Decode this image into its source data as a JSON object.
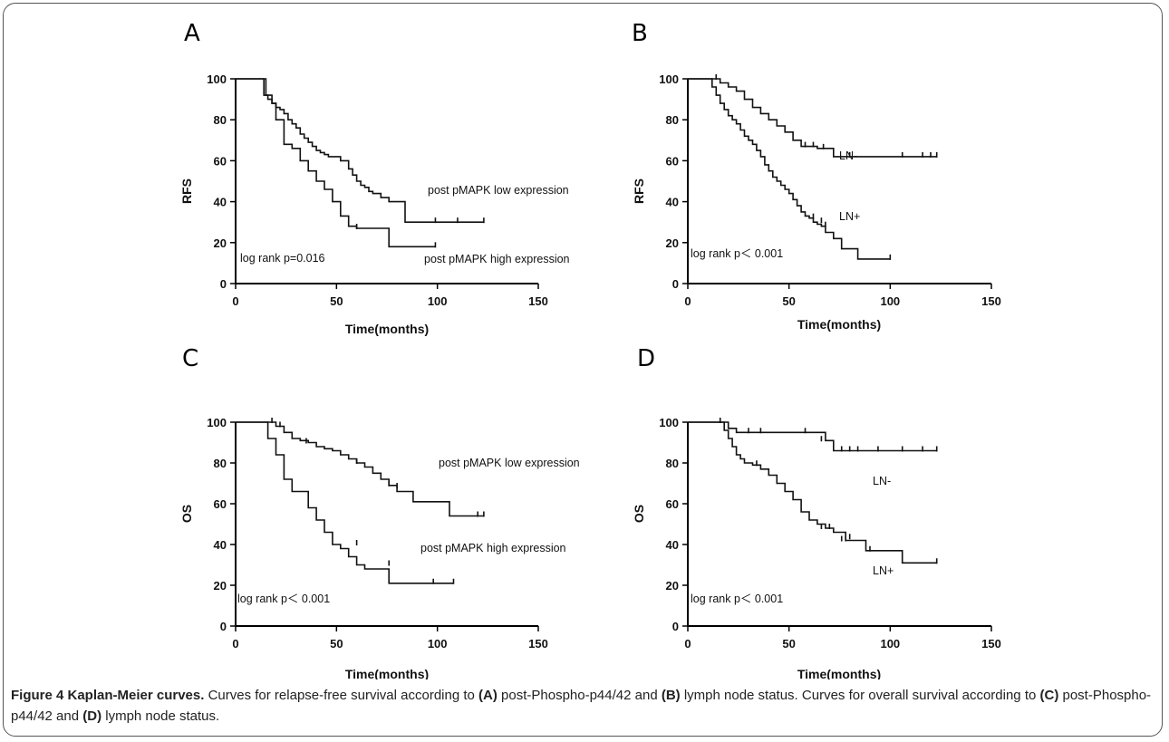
{
  "chart_data": [
    {
      "type": "line",
      "panel": "A",
      "xlabel": "Time(months)",
      "ylabel": "RFS",
      "xlim": [
        0,
        150
      ],
      "ylim": [
        0,
        100
      ],
      "xticks": [
        0,
        50,
        100,
        150
      ],
      "yticks": [
        0,
        20,
        40,
        60,
        80,
        100
      ],
      "annotations": [
        "post pMAPK low expression",
        "post pMAPK high expression",
        "log rank p=0.016"
      ],
      "series": [
        {
          "name": "post pMAPK low expression",
          "x": [
            0,
            13,
            14,
            16,
            18,
            20,
            22,
            24,
            26,
            28,
            30,
            32,
            34,
            36,
            38,
            40,
            42,
            44,
            46,
            48,
            52,
            56,
            58,
            60,
            62,
            64,
            66,
            68,
            72,
            76,
            84,
            123
          ],
          "y": [
            100,
            100,
            92,
            90,
            88,
            86,
            85,
            83,
            80,
            78,
            76,
            73,
            71,
            69,
            67,
            65,
            64,
            63,
            62,
            62,
            60,
            56,
            53,
            50,
            48,
            47,
            45,
            44,
            42,
            40,
            30,
            30
          ],
          "censored": [
            [
              99,
              30
            ],
            [
              110,
              30
            ],
            [
              123,
              30
            ]
          ]
        },
        {
          "name": "post pMAPK high expression",
          "x": [
            0,
            13,
            15,
            18,
            20,
            24,
            28,
            32,
            36,
            40,
            44,
            48,
            52,
            56,
            60,
            66,
            76,
            99
          ],
          "y": [
            100,
            100,
            92,
            88,
            80,
            68,
            66,
            60,
            55,
            50,
            46,
            40,
            33,
            28,
            27,
            27,
            18,
            18
          ],
          "censored": [
            [
              60,
              27
            ],
            [
              99,
              18
            ]
          ]
        }
      ]
    },
    {
      "type": "line",
      "panel": "B",
      "xlabel": "Time(months)",
      "ylabel": "RFS",
      "xlim": [
        0,
        150
      ],
      "ylim": [
        0,
        100
      ],
      "xticks": [
        0,
        50,
        100,
        150
      ],
      "yticks": [
        0,
        20,
        40,
        60,
        80,
        100
      ],
      "annotations": [
        "LN-",
        "LN+",
        "log rank p＜ 0.001"
      ],
      "series": [
        {
          "name": "LN-",
          "x": [
            0,
            14,
            16,
            20,
            24,
            28,
            32,
            36,
            40,
            44,
            48,
            52,
            56,
            64,
            72,
            123
          ],
          "y": [
            100,
            100,
            98,
            96,
            94,
            90,
            86,
            83,
            80,
            77,
            74,
            70,
            67,
            66,
            62,
            62
          ],
          "censored": [
            [
              14,
              100
            ],
            [
              58,
              67
            ],
            [
              62,
              67
            ],
            [
              67,
              66
            ],
            [
              80,
              62
            ],
            [
              106,
              62
            ],
            [
              116,
              62
            ],
            [
              120,
              62
            ],
            [
              123,
              62
            ]
          ]
        },
        {
          "name": "LN+",
          "x": [
            0,
            9,
            12,
            14,
            16,
            18,
            20,
            22,
            24,
            26,
            28,
            30,
            32,
            34,
            36,
            38,
            40,
            42,
            44,
            46,
            48,
            50,
            52,
            54,
            56,
            58,
            60,
            62,
            64,
            66,
            68,
            72,
            76,
            84,
            100
          ],
          "y": [
            100,
            100,
            96,
            92,
            88,
            85,
            82,
            80,
            78,
            75,
            72,
            70,
            68,
            65,
            62,
            58,
            55,
            52,
            50,
            48,
            46,
            44,
            41,
            38,
            35,
            33,
            32,
            30,
            29,
            28,
            25,
            22,
            17,
            12,
            12
          ],
          "censored": [
            [
              62,
              32
            ],
            [
              66,
              30
            ],
            [
              68,
              28
            ],
            [
              100,
              12
            ]
          ]
        }
      ]
    },
    {
      "type": "line",
      "panel": "C",
      "xlabel": "Time(months)",
      "ylabel": "OS",
      "xlim": [
        0,
        150
      ],
      "ylim": [
        0,
        100
      ],
      "xticks": [
        0,
        50,
        100,
        150
      ],
      "yticks": [
        0,
        20,
        40,
        60,
        80,
        100
      ],
      "annotations": [
        "post pMAPK low expression",
        "post pMAPK high expression",
        "log rank p＜ 0.001"
      ],
      "series": [
        {
          "name": "post pMAPK low expression",
          "x": [
            0,
            18,
            20,
            24,
            28,
            32,
            36,
            40,
            44,
            48,
            52,
            56,
            60,
            64,
            68,
            72,
            76,
            80,
            88,
            106,
            123
          ],
          "y": [
            100,
            100,
            98,
            95,
            92,
            91,
            90,
            88,
            87,
            86,
            84,
            82,
            80,
            78,
            75,
            72,
            69,
            66,
            61,
            54,
            54
          ],
          "censored": [
            [
              18,
              100
            ],
            [
              22,
              98
            ],
            [
              35,
              90
            ],
            [
              60,
              80
            ],
            [
              76,
              69
            ],
            [
              80,
              68
            ],
            [
              120,
              54
            ],
            [
              123,
              54
            ]
          ]
        },
        {
          "name": "post pMAPK high expression",
          "x": [
            0,
            14,
            16,
            20,
            24,
            28,
            36,
            40,
            44,
            48,
            52,
            56,
            60,
            64,
            76,
            108
          ],
          "y": [
            100,
            100,
            92,
            84,
            72,
            66,
            58,
            52,
            46,
            40,
            38,
            34,
            30,
            28,
            21,
            21
          ],
          "censored": [
            [
              60,
              40
            ],
            [
              76,
              30
            ],
            [
              98,
              21
            ],
            [
              108,
              21
            ]
          ]
        }
      ]
    },
    {
      "type": "line",
      "panel": "D",
      "xlabel": "Time(months)",
      "ylabel": "OS",
      "xlim": [
        0,
        150
      ],
      "ylim": [
        0,
        100
      ],
      "xticks": [
        0,
        50,
        100,
        150
      ],
      "yticks": [
        0,
        20,
        40,
        60,
        80,
        100
      ],
      "annotations": [
        "LN-",
        "LN+",
        "log rank p＜ 0.001"
      ],
      "series": [
        {
          "name": "LN-",
          "x": [
            0,
            16,
            20,
            24,
            64,
            68,
            72,
            123
          ],
          "y": [
            100,
            100,
            97,
            95,
            95,
            91,
            86,
            86
          ],
          "censored": [
            [
              16,
              100
            ],
            [
              30,
              95
            ],
            [
              36,
              95
            ],
            [
              58,
              95
            ],
            [
              66,
              91
            ],
            [
              76,
              86
            ],
            [
              80,
              86
            ],
            [
              84,
              86
            ],
            [
              94,
              86
            ],
            [
              106,
              86
            ],
            [
              116,
              86
            ],
            [
              123,
              86
            ]
          ]
        },
        {
          "name": "LN+",
          "x": [
            0,
            14,
            18,
            20,
            22,
            24,
            26,
            28,
            32,
            36,
            40,
            44,
            48,
            52,
            56,
            60,
            64,
            68,
            72,
            78,
            88,
            106,
            123
          ],
          "y": [
            100,
            100,
            96,
            92,
            88,
            84,
            82,
            80,
            79,
            77,
            74,
            70,
            66,
            62,
            56,
            52,
            50,
            48,
            46,
            42,
            37,
            31,
            31
          ],
          "censored": [
            [
              34,
              79
            ],
            [
              66,
              48
            ],
            [
              70,
              48
            ],
            [
              76,
              42
            ],
            [
              78,
              42
            ],
            [
              80,
              43
            ],
            [
              90,
              37
            ],
            [
              123,
              31
            ]
          ]
        }
      ]
    }
  ],
  "panels": [
    {
      "letter": "A",
      "ylabel": "RFS",
      "xlabel": "Time(months)",
      "annotation_1": "post pMAPK low expression",
      "annotation_2": "post pMAPK high expression",
      "annotation_3": "log rank p=0.016"
    },
    {
      "letter": "B",
      "ylabel": "RFS",
      "xlabel": "Time(months)",
      "annotation_1": "LN-",
      "annotation_2": "LN+",
      "annotation_3": "log rank p＜ 0.001"
    },
    {
      "letter": "C",
      "ylabel": "OS",
      "xlabel": "Time(months)",
      "annotation_1": "post pMAPK low expression",
      "annotation_2": "post pMAPK high expression",
      "annotation_3": "log rank p＜ 0.001"
    },
    {
      "letter": "D",
      "ylabel": "OS",
      "xlabel": "Time(months)",
      "annotation_1": "LN-",
      "annotation_2": "LN+",
      "annotation_3": "log rank p＜ 0.001"
    }
  ],
  "caption": {
    "label": "Figure 4 Kaplan-Meier curves.",
    "t1": " Curves for relapse-free survival according to ",
    "b1": "(A)",
    "t2": " post-Phospho-p44/42 and ",
    "b2": "(B)",
    "t3": " lymph node status. Curves for overall survival according to ",
    "b3": "(C)",
    "t4": " post-Phospho-p44/42 and ",
    "b4": "(D)",
    "t5": " lymph node status."
  }
}
